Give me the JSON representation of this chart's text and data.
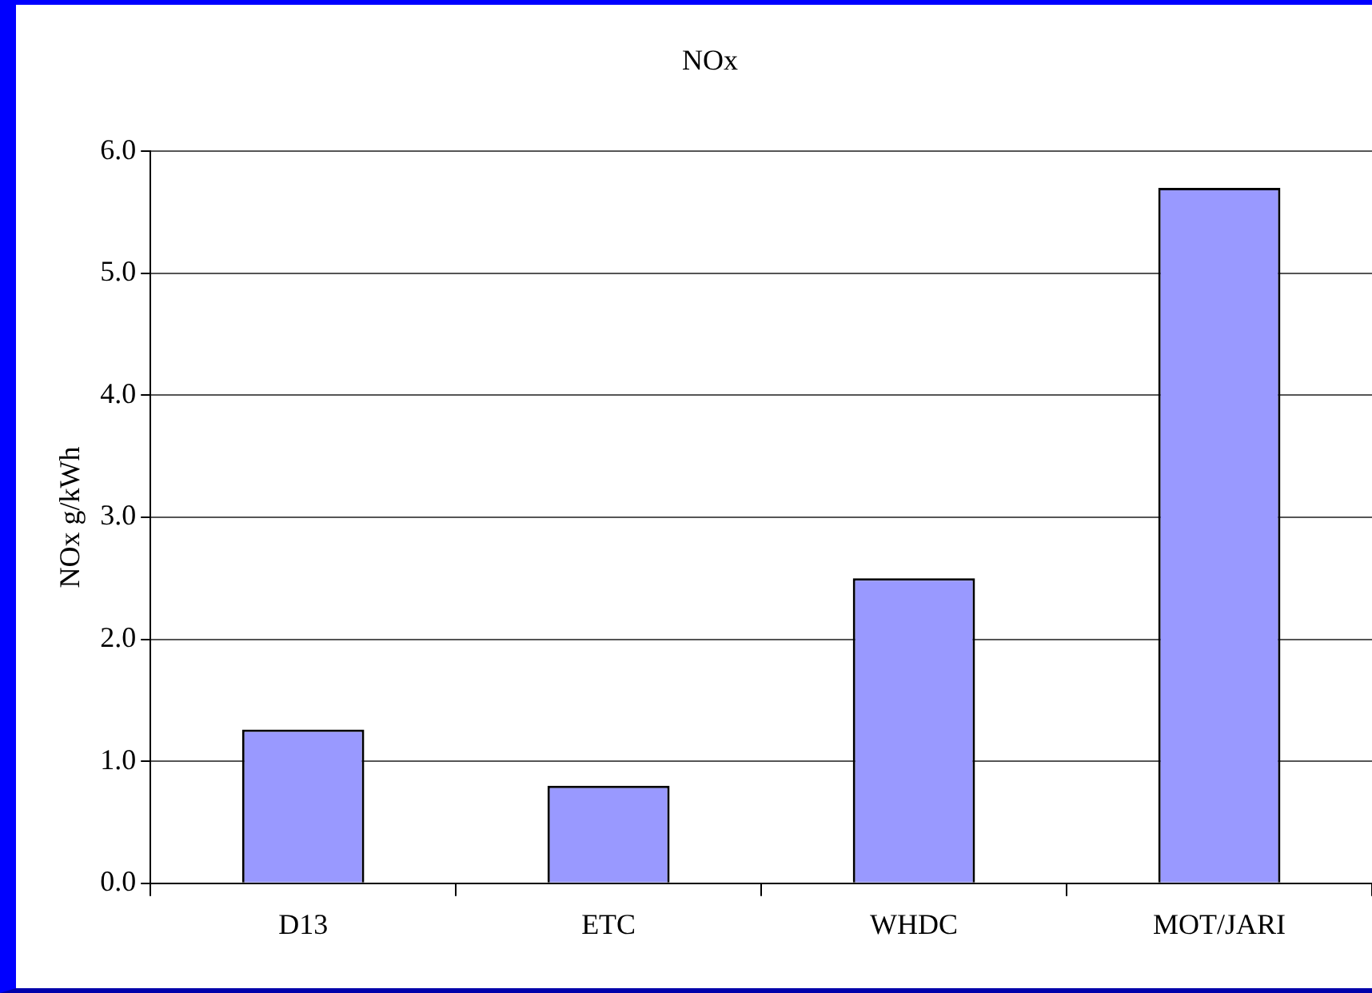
{
  "chart_data": {
    "type": "bar",
    "title": "NOx",
    "ylabel": "NOx g/kWh",
    "categories": [
      "D13",
      "ETC",
      "WHDC",
      "MOT/JARI"
    ],
    "values": [
      1.26,
      0.8,
      2.5,
      5.7
    ],
    "color": "#9999ff",
    "ylim": [
      0,
      6
    ],
    "yticks": [
      {
        "value": 0,
        "label": "0.0"
      },
      {
        "value": 1,
        "label": "1.0"
      },
      {
        "value": 2,
        "label": "2.0"
      },
      {
        "value": 3,
        "label": "3.0"
      },
      {
        "value": 4,
        "label": "4.0"
      },
      {
        "value": 5,
        "label": "5.0"
      },
      {
        "value": 6,
        "label": "6.0"
      }
    ],
    "grid": "y",
    "legend": false
  }
}
